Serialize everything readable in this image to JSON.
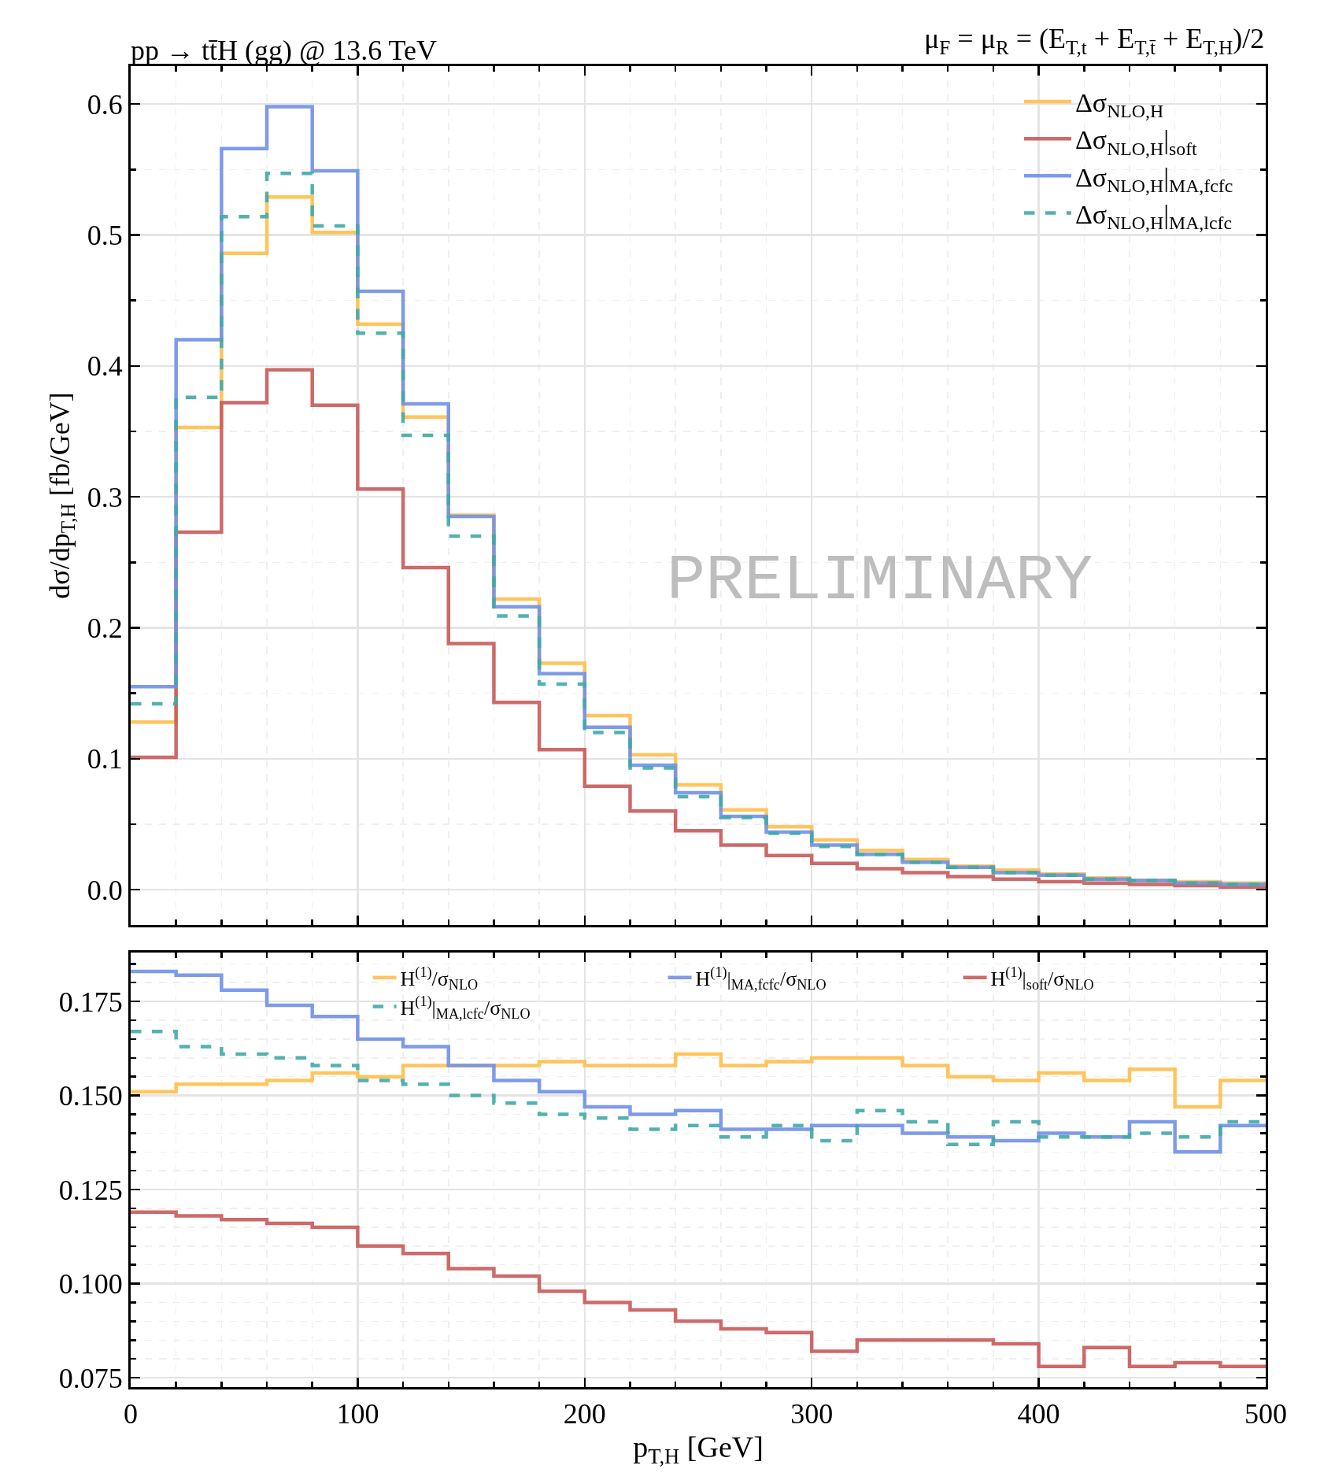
{
  "chart_data": [
    {
      "type": "histogram",
      "title": "pp → tt̄H (gg) @ 13.6 TeV",
      "subtitle": "μ$_{F}$ = μ$_{R}$ = (E$_{T,t}$ + E$_{T,t̄}$ + E$_{T,H}$)/2",
      "ylabel": "dσ/dp$_{T,H}$ [fb/GeV]",
      "bins": [
        0,
        20,
        40,
        60,
        80,
        100,
        120,
        140,
        160,
        180,
        200,
        220,
        240,
        260,
        280,
        300,
        320,
        340,
        360,
        380,
        400,
        420,
        440,
        460,
        480,
        500
      ],
      "series": [
        {
          "name": "Δσ$_{NLO,H}$",
          "color": "#ffbf4a",
          "values": [
            0.128,
            0.353,
            0.486,
            0.529,
            0.502,
            0.432,
            0.361,
            0.286,
            0.222,
            0.173,
            0.133,
            0.103,
            0.08,
            0.061,
            0.048,
            0.038,
            0.03,
            0.023,
            0.018,
            0.015,
            0.012,
            0.009,
            0.007,
            0.006,
            0.005
          ]
        },
        {
          "name": "Δσ$_{NLO,H}$|$_{soft}$",
          "color": "#c85a5a",
          "values": [
            0.101,
            0.273,
            0.372,
            0.397,
            0.37,
            0.306,
            0.246,
            0.188,
            0.143,
            0.107,
            0.079,
            0.06,
            0.045,
            0.034,
            0.026,
            0.02,
            0.016,
            0.013,
            0.01,
            0.008,
            0.006,
            0.005,
            0.004,
            0.003,
            0.002
          ]
        },
        {
          "name": "Δσ$_{NLO,H}$|$_{MA,fcfc}$",
          "color": "#7090e8",
          "values": [
            0.155,
            0.42,
            0.566,
            0.598,
            0.549,
            0.457,
            0.371,
            0.285,
            0.216,
            0.165,
            0.124,
            0.095,
            0.074,
            0.056,
            0.044,
            0.034,
            0.027,
            0.021,
            0.017,
            0.013,
            0.011,
            0.008,
            0.007,
            0.005,
            0.004
          ]
        },
        {
          "name": "Δσ$_{NLO,H}$|$_{MA,lcfc}$",
          "color": "#40a8a8",
          "line_style": "dashed",
          "values": [
            0.142,
            0.376,
            0.514,
            0.547,
            0.507,
            0.425,
            0.347,
            0.27,
            0.209,
            0.157,
            0.12,
            0.093,
            0.071,
            0.055,
            0.043,
            0.033,
            0.027,
            0.021,
            0.017,
            0.013,
            0.011,
            0.008,
            0.007,
            0.005,
            0.004
          ]
        }
      ],
      "xlim": [
        0,
        500
      ],
      "xticks": [
        0,
        100,
        200,
        300,
        400,
        500
      ],
      "ylim": [
        -0.027,
        0.629
      ],
      "yticks": [
        {
          "value": 0,
          "label": "0.0"
        },
        0.1,
        0.2,
        0.3,
        0.4,
        0.5,
        0.6
      ],
      "tick_labels": "y",
      "grid": true,
      "legend": "top right",
      "line_style": "solid",
      "annotations": [
        "PRELIMINARY"
      ]
    },
    {
      "type": "histogram",
      "xlabel": "p$_{T,H}$ [GeV]",
      "bins": [
        0,
        20,
        40,
        60,
        80,
        100,
        120,
        140,
        160,
        180,
        200,
        220,
        240,
        260,
        280,
        300,
        320,
        340,
        360,
        380,
        400,
        420,
        440,
        460,
        480,
        500
      ],
      "series": [
        {
          "name": "H$^{(1)}$/σ$_{NLO}$",
          "color": "#ffbf4a",
          "values": [
            0.151,
            0.153,
            0.153,
            0.154,
            0.156,
            0.155,
            0.158,
            0.158,
            0.158,
            0.159,
            0.158,
            0.158,
            0.161,
            0.158,
            0.159,
            0.16,
            0.16,
            0.158,
            0.155,
            0.154,
            0.156,
            0.154,
            0.157,
            0.147,
            0.154
          ]
        },
        {
          "name": "H$^{(1)}$|$_{soft}$/σ$_{NLO}$",
          "color": "#c85a5a",
          "values": [
            0.119,
            0.118,
            0.117,
            0.116,
            0.115,
            0.11,
            0.108,
            0.104,
            0.102,
            0.098,
            0.095,
            0.093,
            0.09,
            0.088,
            0.087,
            0.082,
            0.085,
            0.085,
            0.085,
            0.084,
            0.078,
            0.083,
            0.078,
            0.079,
            0.078
          ]
        },
        {
          "name": "H$^{(1)}$|$_{MA,fcfc}$/σ$_{NLO}$",
          "color": "#7090e8",
          "values": [
            0.183,
            0.182,
            0.178,
            0.174,
            0.171,
            0.165,
            0.163,
            0.158,
            0.154,
            0.151,
            0.147,
            0.145,
            0.146,
            0.141,
            0.141,
            0.142,
            0.142,
            0.14,
            0.139,
            0.138,
            0.14,
            0.139,
            0.143,
            0.135,
            0.142
          ]
        },
        {
          "name": "H$^{(1)}$|$_{MA,lcfc}$/σ$_{NLO}$",
          "color": "#40a8a8",
          "line_style": "dashed",
          "values": [
            0.167,
            0.163,
            0.161,
            0.16,
            0.158,
            0.154,
            0.153,
            0.15,
            0.148,
            0.145,
            0.144,
            0.141,
            0.142,
            0.139,
            0.142,
            0.138,
            0.146,
            0.143,
            0.137,
            0.143,
            0.139,
            0.139,
            0.14,
            0.139,
            0.143
          ]
        }
      ],
      "xlim": [
        0,
        500
      ],
      "xticks": [
        0,
        100,
        200,
        300,
        400,
        500
      ],
      "ylim": [
        0.0725,
        0.188
      ],
      "yticks": [
        0.075,
        {
          "value": 0.1,
          "label": "0.100"
        },
        0.125,
        {
          "value": 0.15,
          "label": "0.150"
        },
        0.175
      ],
      "grid": true,
      "legend": "top right",
      "line_style": "solid"
    }
  ]
}
